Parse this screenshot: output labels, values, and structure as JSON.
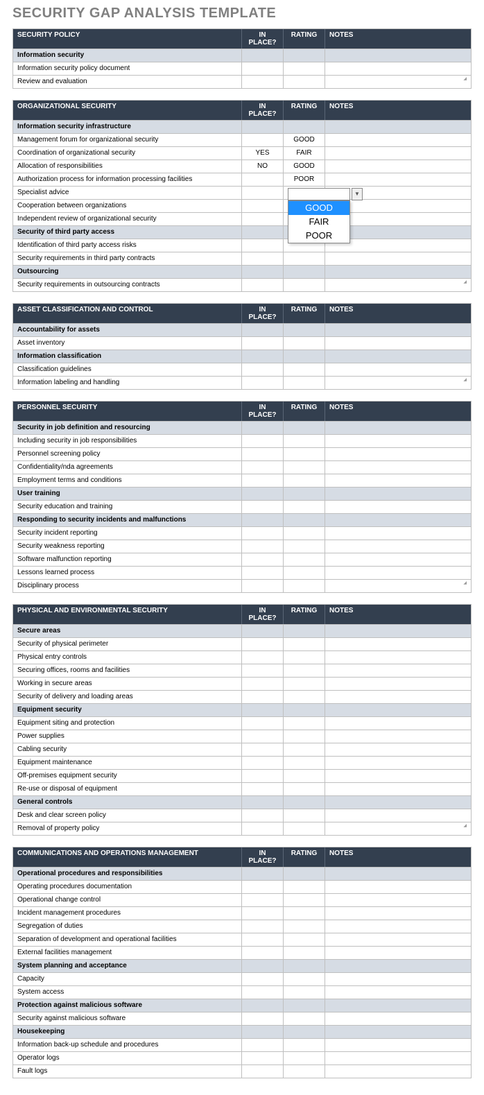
{
  "title": "SECURITY GAP ANALYSIS TEMPLATE",
  "columns": {
    "desc_key": "",
    "in_place": "IN PLACE?",
    "rating": "RATING",
    "notes": "NOTES"
  },
  "colors": {
    "header_bg": "#333f4f",
    "header_text": "#ffffff",
    "subheader_bg": "#d6dce4",
    "border": "#bfbfbf",
    "title_text": "#808080",
    "dropdown_sel_bg": "#1e90ff",
    "dropdown_sel_text": "#ffffff"
  },
  "dropdown": {
    "options": [
      "GOOD",
      "FAIR",
      "POOR"
    ],
    "selected_index": 0
  },
  "sections": [
    {
      "title": "SECURITY POLICY",
      "rows": [
        {
          "type": "sub",
          "label": "Information security"
        },
        {
          "type": "item",
          "label": "Information security policy document"
        },
        {
          "type": "item",
          "label": "Review and evaluation",
          "resize": true
        }
      ]
    },
    {
      "title": "ORGANIZATIONAL SECURITY",
      "rows": [
        {
          "type": "sub",
          "label": "Information security infrastructure"
        },
        {
          "type": "item",
          "label": "Management forum for organizational security",
          "rating": "GOOD"
        },
        {
          "type": "item",
          "label": "Coordination of organizational security",
          "in_place": "YES",
          "rating": "FAIR"
        },
        {
          "type": "item",
          "label": "Allocation of responsibilities",
          "in_place": "NO",
          "rating": "GOOD"
        },
        {
          "type": "item",
          "label": "Authorization process for information processing facilities",
          "rating": "POOR"
        },
        {
          "type": "item",
          "label": "Specialist advice",
          "dropdown": true
        },
        {
          "type": "item",
          "label": "Cooperation between organizations"
        },
        {
          "type": "item",
          "label": "Independent review of organizational security"
        },
        {
          "type": "sub",
          "label": "Security of third party access"
        },
        {
          "type": "item",
          "label": "Identification of third party access risks"
        },
        {
          "type": "item",
          "label": "Security requirements in third party contracts"
        },
        {
          "type": "sub",
          "label": "Outsourcing"
        },
        {
          "type": "item",
          "label": "Security requirements in outsourcing contracts",
          "resize": true
        }
      ]
    },
    {
      "title": "ASSET CLASSIFICATION AND CONTROL",
      "rows": [
        {
          "type": "sub",
          "label": "Accountability for assets"
        },
        {
          "type": "item",
          "label": "Asset inventory"
        },
        {
          "type": "sub",
          "label": "Information classification"
        },
        {
          "type": "item",
          "label": "Classification guidelines"
        },
        {
          "type": "item",
          "label": "Information labeling and handling",
          "resize": true
        }
      ]
    },
    {
      "title": "PERSONNEL SECURITY",
      "rows": [
        {
          "type": "sub",
          "label": "Security in job definition and resourcing"
        },
        {
          "type": "item",
          "label": "Including security in job responsibilities"
        },
        {
          "type": "item",
          "label": "Personnel screening policy"
        },
        {
          "type": "item",
          "label": "Confidentiality/nda agreements"
        },
        {
          "type": "item",
          "label": "Employment terms and conditions"
        },
        {
          "type": "sub",
          "label": "User training"
        },
        {
          "type": "item",
          "label": "Security education and training"
        },
        {
          "type": "sub",
          "label": "Responding to security incidents and malfunctions"
        },
        {
          "type": "item",
          "label": "Security incident reporting"
        },
        {
          "type": "item",
          "label": "Security weakness reporting"
        },
        {
          "type": "item",
          "label": "Software malfunction reporting"
        },
        {
          "type": "item",
          "label": "Lessons learned process"
        },
        {
          "type": "item",
          "label": "Disciplinary process",
          "resize": true
        }
      ]
    },
    {
      "title": "PHYSICAL AND ENVIRONMENTAL SECURITY",
      "rows": [
        {
          "type": "sub",
          "label": "Secure areas"
        },
        {
          "type": "item",
          "label": "Security of physical perimeter"
        },
        {
          "type": "item",
          "label": "Physical entry controls"
        },
        {
          "type": "item",
          "label": "Securing offices, rooms and facilities"
        },
        {
          "type": "item",
          "label": "Working in secure areas"
        },
        {
          "type": "item",
          "label": "Security of delivery and loading areas"
        },
        {
          "type": "sub",
          "label": "Equipment security"
        },
        {
          "type": "item",
          "label": "Equipment siting and protection"
        },
        {
          "type": "item",
          "label": "Power supplies"
        },
        {
          "type": "item",
          "label": "Cabling security"
        },
        {
          "type": "item",
          "label": "Equipment maintenance"
        },
        {
          "type": "item",
          "label": "Off-premises equipment security"
        },
        {
          "type": "item",
          "label": "Re-use or disposal of equipment"
        },
        {
          "type": "sub",
          "label": "General controls"
        },
        {
          "type": "item",
          "label": "Desk and clear screen policy"
        },
        {
          "type": "item",
          "label": "Removal of property policy",
          "resize": true
        }
      ]
    },
    {
      "title": "COMMUNICATIONS AND OPERATIONS MANAGEMENT",
      "rows": [
        {
          "type": "sub",
          "label": "Operational procedures and responsibilities"
        },
        {
          "type": "item",
          "label": "Operating procedures documentation"
        },
        {
          "type": "item",
          "label": "Operational change control"
        },
        {
          "type": "item",
          "label": "Incident management procedures"
        },
        {
          "type": "item",
          "label": "Segregation of duties"
        },
        {
          "type": "item",
          "label": "Separation of development and operational facilities"
        },
        {
          "type": "item",
          "label": "External facilities management"
        },
        {
          "type": "sub",
          "label": "System planning and acceptance"
        },
        {
          "type": "item",
          "label": "Capacity"
        },
        {
          "type": "item",
          "label": "System access"
        },
        {
          "type": "sub",
          "label": "Protection against malicious software"
        },
        {
          "type": "item",
          "label": "Security against malicious software"
        },
        {
          "type": "sub",
          "label": "Housekeeping"
        },
        {
          "type": "item",
          "label": "Information back-up schedule and procedures"
        },
        {
          "type": "item",
          "label": "Operator logs"
        },
        {
          "type": "item",
          "label": "Fault logs"
        }
      ]
    }
  ]
}
